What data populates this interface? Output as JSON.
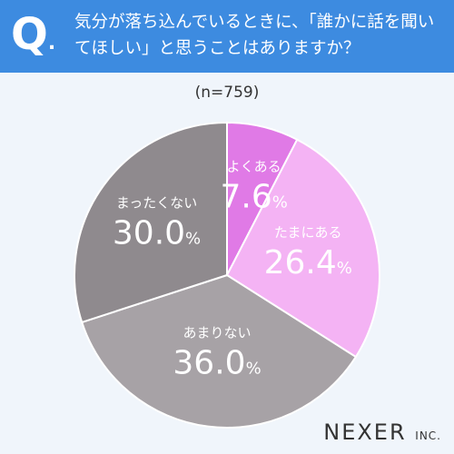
{
  "header": {
    "q_mark": "Q",
    "question": "気分が落ち込んでいるときに、「誰かに話を聞いてほしい」と思うことはありますか？"
  },
  "sample_size": "(n=759)",
  "logo": {
    "main": "NEXER",
    "suffix": "INC."
  },
  "colors": {
    "header_bg": "#3d8be0",
    "page_bg": "#f0f5fb",
    "yoku_aru": "#e07ae6",
    "tama_ni_aru": "#f4b3f4",
    "amari_nai": "#a7a2a6",
    "mattaku_nai": "#8f8a8e"
  },
  "chart_data": {
    "type": "pie",
    "slices": [
      {
        "label": "よくある",
        "value": 7.6,
        "display": "7.6",
        "color": "#e07ae6"
      },
      {
        "label": "たまにある",
        "value": 26.4,
        "display": "26.4",
        "color": "#f4b3f4"
      },
      {
        "label": "あまりない",
        "value": 36.0,
        "display": "36.0",
        "color": "#a7a2a6"
      },
      {
        "label": "まったくない",
        "value": 30.0,
        "display": "30.0",
        "color": "#8f8a8e"
      }
    ],
    "unit": "%",
    "start": "12 o'clock",
    "direction": "clockwise"
  }
}
